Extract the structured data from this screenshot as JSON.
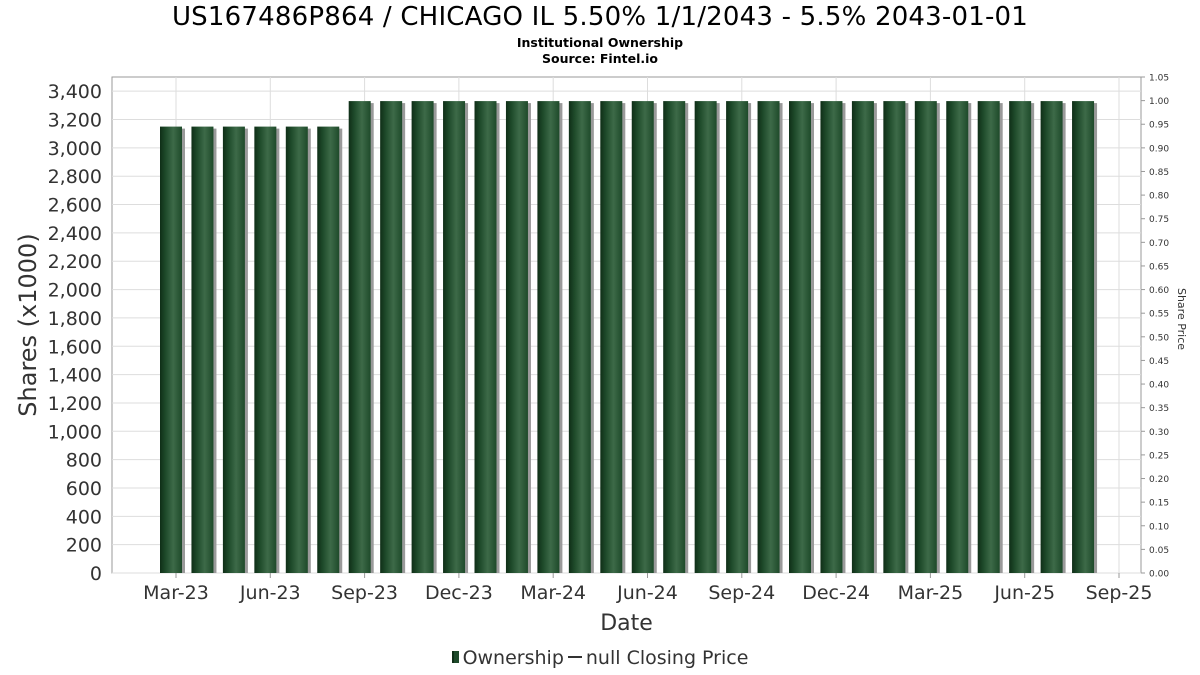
{
  "chart_data": {
    "type": "bar",
    "title": "US167486P864 / CHICAGO IL 5.50% 1/1/2043 - 5.5% 2043-01-01",
    "subtitle1": "Institutional Ownership",
    "subtitle2": "Source: Fintel.io",
    "xlabel": "Date",
    "ylabel": "Shares (x1000)",
    "ylabel_right": "Share Price",
    "ylim": [
      0,
      3500
    ],
    "ylim_right": [
      0,
      1.05
    ],
    "yticks": [
      "0",
      "200",
      "400",
      "600",
      "800",
      "1,000",
      "1,200",
      "1,400",
      "1,600",
      "1,800",
      "2,000",
      "2,200",
      "2,400",
      "2,600",
      "2,800",
      "3,000",
      "3,200",
      "3,400"
    ],
    "yticks_right": [
      "0.00",
      "0.05",
      "0.10",
      "0.15",
      "0.20",
      "0.25",
      "0.30",
      "0.35",
      "0.40",
      "0.45",
      "0.50",
      "0.55",
      "0.60",
      "0.65",
      "0.70",
      "0.75",
      "0.80",
      "0.85",
      "0.90",
      "0.95",
      "1.00",
      "1.05"
    ],
    "xticks": [
      "Mar-23",
      "Jun-23",
      "Sep-23",
      "Dec-23",
      "Mar-24",
      "Jun-24",
      "Sep-24",
      "Dec-24",
      "Mar-25",
      "Jun-25",
      "Sep-25"
    ],
    "series": [
      {
        "name": "Ownership",
        "values": [
          3150,
          3150,
          3150,
          3150,
          3150,
          3150,
          3330,
          3330,
          3330,
          3330,
          3330,
          3330,
          3330,
          3330,
          3330,
          3330,
          3330,
          3330,
          3330,
          3330,
          3330,
          3330,
          3330,
          3330,
          3330,
          3330,
          3330,
          3330,
          3330,
          3330
        ]
      }
    ],
    "legend": [
      "Ownership",
      "null Closing Price"
    ],
    "legend_position": "bottom",
    "grid": true,
    "colors": {
      "bar": "#1e4a2a",
      "bar_dark": "#0f2e17",
      "bar_light": "#3d6a48",
      "shadow": "#9a9a9a",
      "grid": "#dddddd"
    }
  }
}
